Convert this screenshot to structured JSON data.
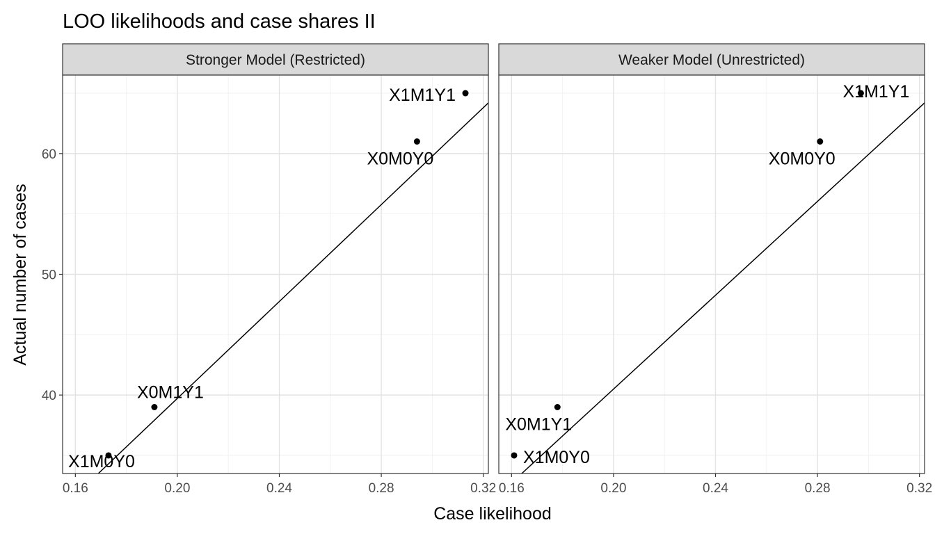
{
  "chart_data": {
    "type": "scatter",
    "title": "LOO likelihoods and case shares II",
    "xlabel": "Case likelihood",
    "ylabel": "Actual number of cases",
    "xlim": [
      0.155,
      0.322
    ],
    "ylim": [
      33.5,
      66.5
    ],
    "x_ticks": [
      0.16,
      0.2,
      0.24,
      0.28,
      0.32
    ],
    "x_tick_labels": [
      "0.16",
      "0.20",
      "0.24",
      "0.28",
      "0.32"
    ],
    "y_ticks": [
      40,
      50,
      60
    ],
    "y_tick_labels": [
      "40",
      "50",
      "60"
    ],
    "grid": true,
    "panels": [
      {
        "name": "Stronger Model (Restricted)",
        "points": [
          {
            "label": "X1M1Y1",
            "x": 0.313,
            "y": 65
          },
          {
            "label": "X0M0Y0",
            "x": 0.294,
            "y": 61
          },
          {
            "label": "X0M1Y1",
            "x": 0.191,
            "y": 39
          },
          {
            "label": "X1M0Y0",
            "x": 0.173,
            "y": 35
          }
        ],
        "fit_line": {
          "x0": 0.169,
          "y0": 33.5,
          "x1": 0.322,
          "y1": 64.2
        }
      },
      {
        "name": "Weaker Model  (Unrestricted)",
        "points": [
          {
            "label": "X1M1Y1",
            "x": 0.297,
            "y": 65
          },
          {
            "label": "X0M0Y0",
            "x": 0.281,
            "y": 61
          },
          {
            "label": "X0M1Y1",
            "x": 0.178,
            "y": 39
          },
          {
            "label": "X1M0Y0",
            "x": 0.161,
            "y": 35
          }
        ],
        "fit_line": {
          "x0": 0.164,
          "y0": 33.5,
          "x1": 0.322,
          "y1": 64.2
        }
      }
    ]
  }
}
